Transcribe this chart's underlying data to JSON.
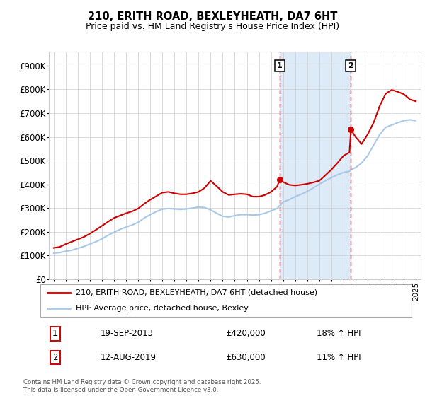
{
  "title1": "210, ERITH ROAD, BEXLEYHEATH, DA7 6HT",
  "title2": "Price paid vs. HM Land Registry's House Price Index (HPI)",
  "ytick_labels": [
    "£0",
    "£100K",
    "£200K",
    "£300K",
    "£400K",
    "£500K",
    "£600K",
    "£700K",
    "£800K",
    "£900K"
  ],
  "yticks": [
    0,
    100000,
    200000,
    300000,
    400000,
    500000,
    600000,
    700000,
    800000,
    900000
  ],
  "ylim": [
    0,
    960000
  ],
  "xlim_min": 1994.6,
  "xlim_max": 2025.4,
  "red_line_label": "210, ERITH ROAD, BEXLEYHEATH, DA7 6HT (detached house)",
  "blue_line_label": "HPI: Average price, detached house, Bexley",
  "sale1_date": "19-SEP-2013",
  "sale1_price": "£420,000",
  "sale1_hpi": "18% ↑ HPI",
  "sale1_label": "1",
  "sale2_date": "12-AUG-2019",
  "sale2_price": "£630,000",
  "sale2_hpi": "11% ↑ HPI",
  "sale2_label": "2",
  "footnote": "Contains HM Land Registry data © Crown copyright and database right 2025.\nThis data is licensed under the Open Government Licence v3.0.",
  "red_color": "#cc0000",
  "blue_color": "#a8c8e8",
  "shaded_color": "#ddeaf7",
  "grid_color": "#cccccc",
  "bg_color": "#ffffff",
  "vline_color": "#cc0000",
  "vline1_year": 2013.72,
  "vline2_year": 2019.62,
  "marker1_year": 2013.72,
  "marker1_value": 420000,
  "marker2_year": 2019.62,
  "marker2_value": 630000,
  "hpi_years": [
    1995,
    1995.5,
    1996,
    1996.5,
    1997,
    1997.5,
    1998,
    1998.5,
    1999,
    1999.5,
    2000,
    2000.5,
    2001,
    2001.5,
    2002,
    2002.5,
    2003,
    2003.5,
    2004,
    2004.5,
    2005,
    2005.5,
    2006,
    2006.5,
    2007,
    2007.5,
    2008,
    2008.5,
    2009,
    2009.5,
    2010,
    2010.5,
    2011,
    2011.5,
    2012,
    2012.5,
    2013,
    2013.5,
    2013.72,
    2014,
    2014.5,
    2015,
    2015.5,
    2016,
    2016.5,
    2017,
    2017.5,
    2018,
    2018.5,
    2019,
    2019.5,
    2019.62,
    2020,
    2020.5,
    2021,
    2021.5,
    2022,
    2022.5,
    2023,
    2023.5,
    2024,
    2024.5,
    2025
  ],
  "hpi_values": [
    110000,
    112000,
    118000,
    122000,
    130000,
    138000,
    148000,
    158000,
    170000,
    185000,
    198000,
    210000,
    220000,
    228000,
    240000,
    258000,
    272000,
    285000,
    295000,
    298000,
    296000,
    294000,
    296000,
    300000,
    304000,
    302000,
    292000,
    278000,
    265000,
    262000,
    268000,
    272000,
    272000,
    270000,
    272000,
    278000,
    288000,
    298000,
    310000,
    325000,
    335000,
    348000,
    358000,
    370000,
    385000,
    400000,
    415000,
    428000,
    440000,
    450000,
    455000,
    462000,
    470000,
    490000,
    520000,
    565000,
    610000,
    640000,
    650000,
    660000,
    668000,
    672000,
    668000
  ],
  "red_years": [
    1995,
    1995.5,
    1996,
    1996.5,
    1997,
    1997.5,
    1998,
    1998.5,
    1999,
    1999.5,
    2000,
    2000.5,
    2001,
    2001.5,
    2002,
    2002.5,
    2003,
    2003.5,
    2004,
    2004.5,
    2005,
    2005.5,
    2006,
    2006.5,
    2007,
    2007.5,
    2008,
    2008.5,
    2009,
    2009.5,
    2010,
    2010.5,
    2011,
    2011.5,
    2012,
    2012.5,
    2013,
    2013.5,
    2013.72,
    2014,
    2014.5,
    2015,
    2015.5,
    2016,
    2016.5,
    2017,
    2017.5,
    2018,
    2018.5,
    2019,
    2019.5,
    2019.62,
    2020,
    2020.5,
    2021,
    2021.5,
    2022,
    2022.5,
    2023,
    2023.5,
    2024,
    2024.5,
    2025
  ],
  "red_values": [
    132000,
    136000,
    148000,
    158000,
    168000,
    178000,
    192000,
    208000,
    225000,
    242000,
    258000,
    268000,
    278000,
    286000,
    298000,
    318000,
    335000,
    350000,
    365000,
    368000,
    362000,
    358000,
    358000,
    362000,
    368000,
    385000,
    415000,
    392000,
    368000,
    355000,
    358000,
    360000,
    358000,
    348000,
    348000,
    355000,
    368000,
    390000,
    420000,
    410000,
    398000,
    395000,
    398000,
    402000,
    408000,
    415000,
    438000,
    462000,
    490000,
    520000,
    535000,
    630000,
    600000,
    570000,
    610000,
    660000,
    730000,
    782000,
    798000,
    790000,
    780000,
    758000,
    750000
  ]
}
